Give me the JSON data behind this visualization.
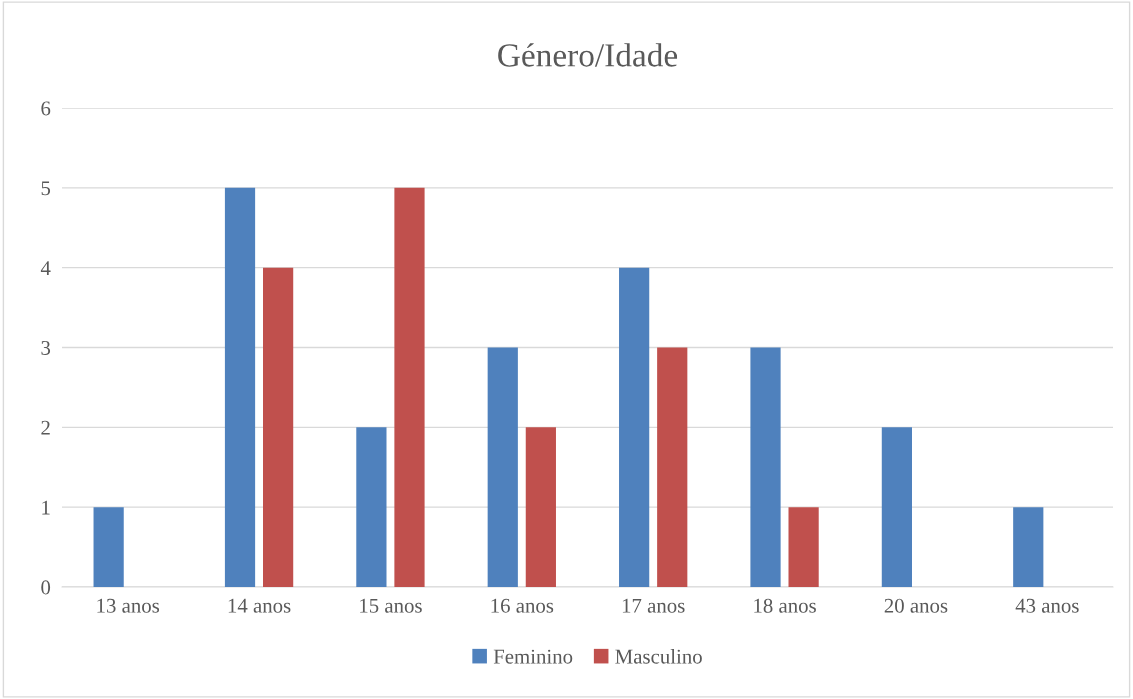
{
  "chart_data": {
    "type": "bar",
    "title": "Género/Idade",
    "categories": [
      "13 anos",
      "14 anos",
      "15 anos",
      "16 anos",
      "17 anos",
      "18 anos",
      "20 anos",
      "43 anos"
    ],
    "series": [
      {
        "name": "Feminino",
        "color": "#4f81bd",
        "values": [
          1,
          5,
          2,
          3,
          4,
          3,
          2,
          1
        ]
      },
      {
        "name": "Masculino",
        "color": "#c0504d",
        "values": [
          0,
          4,
          5,
          2,
          3,
          1,
          0,
          0
        ]
      }
    ],
    "ylim": [
      0,
      6
    ],
    "yticks": [
      0,
      1,
      2,
      3,
      4,
      5,
      6
    ],
    "grid": "y",
    "legend": "bottom"
  }
}
